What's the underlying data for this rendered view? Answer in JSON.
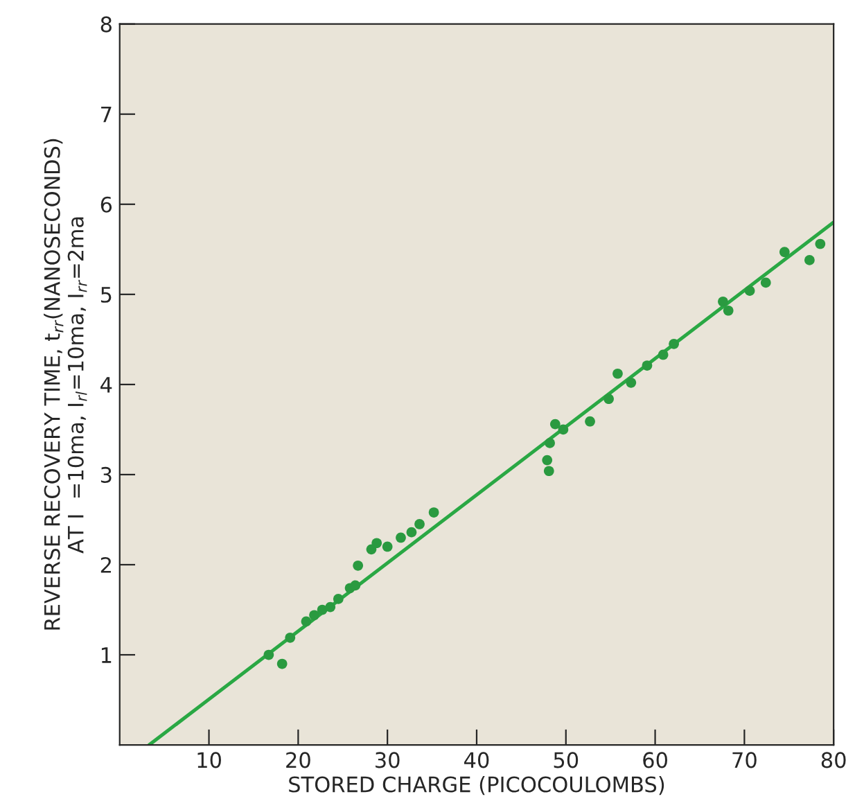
{
  "chart_data": {
    "type": "scatter",
    "xlabel": "STORED CHARGE (PICOCOULOMBS)",
    "ylabel": "REVERSE RECOVERY TIME, t$_{rr}$(NANOSECONDS)\nAT I  =10ma, I$_{rl}$=10ma, I$_{rr}$=2ma",
    "xlim": [
      0,
      80
    ],
    "ylim": [
      0,
      8
    ],
    "xticks": [
      10,
      20,
      30,
      40,
      50,
      60,
      70,
      80
    ],
    "yticks": [
      1,
      2,
      3,
      4,
      5,
      6,
      7,
      8
    ],
    "grid": false,
    "marker": "circle",
    "series": [
      {
        "color": "#2a9a40",
        "x": [
          16.7,
          18.2,
          19.1,
          20.9,
          21.8,
          22.7,
          23.6,
          24.5,
          25.8,
          26.4,
          26.7,
          28.2,
          28.8,
          30.0,
          31.5,
          32.7,
          33.6,
          35.2,
          47.9,
          48.1,
          48.2,
          48.8,
          49.7,
          52.7,
          54.8,
          55.8,
          57.3,
          59.1,
          60.9,
          62.1,
          67.6,
          68.2,
          70.6,
          72.4,
          74.5,
          77.3,
          78.5
        ],
        "values": [
          1.0,
          0.9,
          1.19,
          1.37,
          1.44,
          1.5,
          1.53,
          1.62,
          1.74,
          1.77,
          1.99,
          2.17,
          2.24,
          2.2,
          2.3,
          2.36,
          2.45,
          2.58,
          3.16,
          3.04,
          3.35,
          3.56,
          3.5,
          3.59,
          3.84,
          4.12,
          4.02,
          4.21,
          4.33,
          4.45,
          4.92,
          4.82,
          5.04,
          5.13,
          5.47,
          5.38,
          5.56
        ]
      },
      {
        "type": "line",
        "color": "#2aa844",
        "x": [
          3.3,
          80
        ],
        "values": [
          0,
          5.8
        ],
        "marker": "none",
        "line_style": "solid"
      }
    ]
  }
}
